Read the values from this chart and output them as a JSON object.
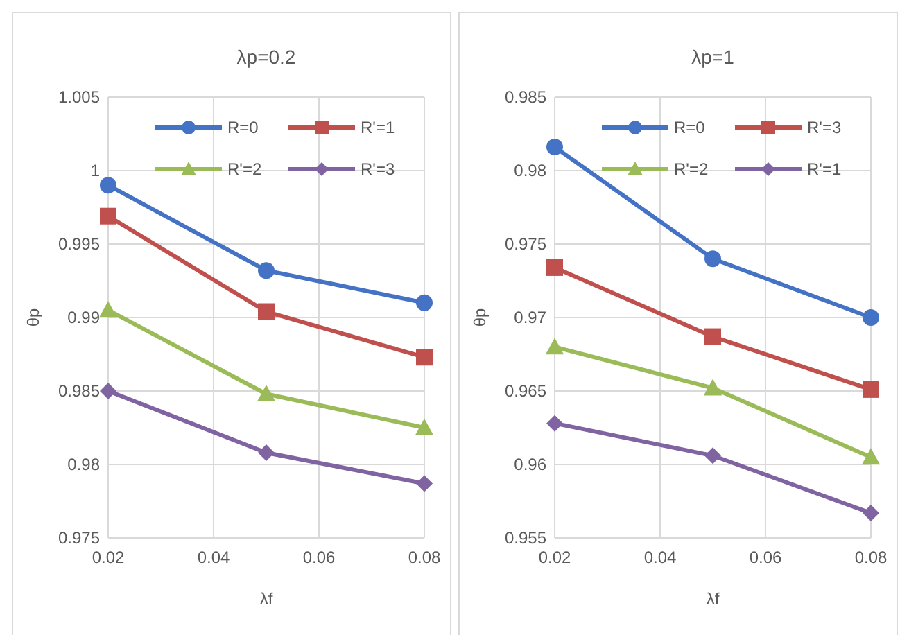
{
  "chart_data": [
    {
      "type": "line",
      "title": "λp=0.2",
      "xlabel": "λf",
      "ylabel": "θp",
      "x": [
        0.02,
        0.05,
        0.08
      ],
      "xlim": [
        0.02,
        0.08
      ],
      "xticks": [
        0.02,
        0.04,
        0.06,
        0.08
      ],
      "ylim": [
        0.975,
        1.005
      ],
      "yticks": [
        0.975,
        0.98,
        0.985,
        0.99,
        0.995,
        1,
        1.005
      ],
      "grid": true,
      "legend": "top right",
      "series": [
        {
          "name": "R=0",
          "color": "#4472c4",
          "marker": "circle",
          "values": [
            0.999,
            0.9932,
            0.991
          ]
        },
        {
          "name": "R'=1",
          "color": "#c0504d",
          "marker": "square",
          "values": [
            0.9969,
            0.9904,
            0.9873
          ]
        },
        {
          "name": "R'=2",
          "color": "#9bbb59",
          "marker": "triangle",
          "values": [
            0.9905,
            0.9848,
            0.9825
          ]
        },
        {
          "name": "R'=3",
          "color": "#8064a2",
          "marker": "diamond",
          "values": [
            0.985,
            0.9808,
            0.9787
          ]
        }
      ]
    },
    {
      "type": "line",
      "title": "λp=1",
      "xlabel": "λf",
      "ylabel": "θp",
      "x": [
        0.02,
        0.05,
        0.08
      ],
      "xlim": [
        0.02,
        0.08
      ],
      "xticks": [
        0.02,
        0.04,
        0.06,
        0.08
      ],
      "ylim": [
        0.955,
        0.985
      ],
      "yticks": [
        0.955,
        0.96,
        0.965,
        0.97,
        0.975,
        0.98,
        0.985
      ],
      "grid": true,
      "legend": "top right",
      "series": [
        {
          "name": "R=0",
          "color": "#4472c4",
          "marker": "circle",
          "values": [
            0.9816,
            0.974,
            0.97
          ]
        },
        {
          "name": "R'=3",
          "color": "#c0504d",
          "marker": "square",
          "values": [
            0.9734,
            0.9687,
            0.9651
          ]
        },
        {
          "name": "R'=2",
          "color": "#9bbb59",
          "marker": "triangle",
          "values": [
            0.968,
            0.9652,
            0.9605
          ]
        },
        {
          "name": "R'=1",
          "color": "#8064a2",
          "marker": "diamond",
          "values": [
            0.9628,
            0.9606,
            0.9567
          ]
        }
      ]
    }
  ]
}
